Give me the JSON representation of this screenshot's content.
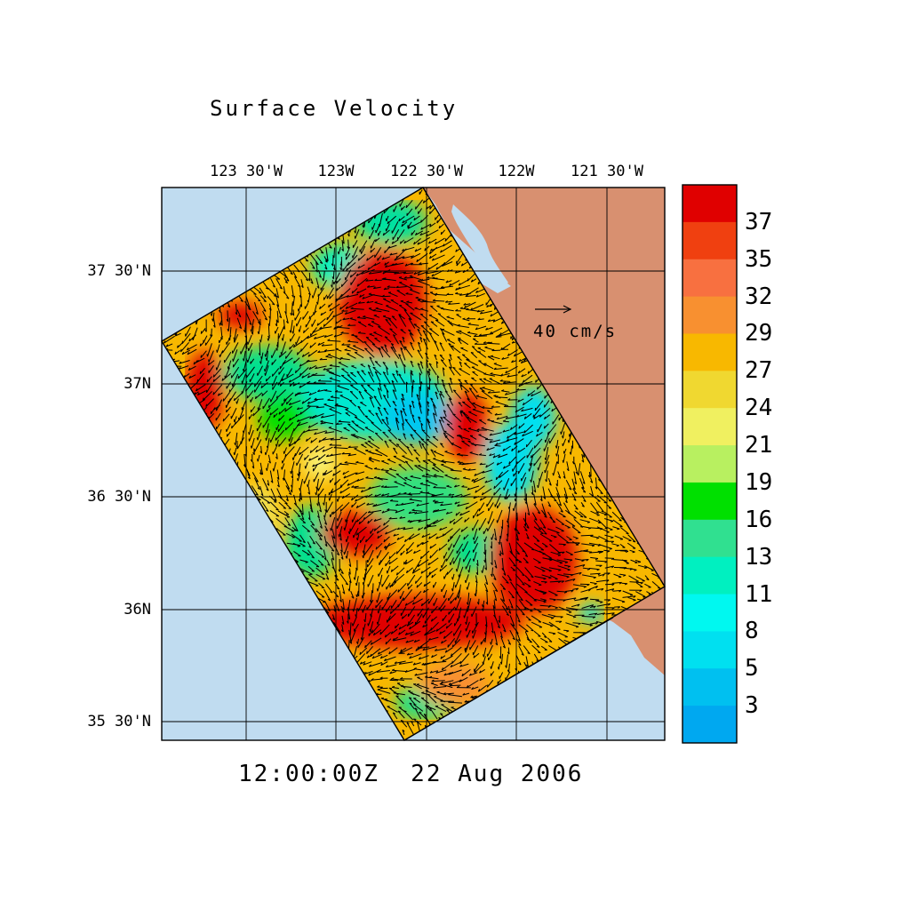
{
  "title": "Surface Velocity",
  "timestamp": "12:00:00Z  22 Aug 2006",
  "map": {
    "lon_ticks": [
      "123 30'W",
      "123W",
      "122 30'W",
      "122W",
      "121 30'W"
    ],
    "lat_ticks": [
      "37 30'N",
      "37N",
      "36 30'N",
      "36N",
      "35 30'N"
    ],
    "ocean_color": "#c0dcf0",
    "land_color": "#d89070",
    "vector_scale_label": "40 cm/s",
    "vector_scale_value": 40,
    "units": "cm/s"
  },
  "colorbar": {
    "labels": [
      "37",
      "35",
      "32",
      "29",
      "27",
      "24",
      "21",
      "19",
      "16",
      "13",
      "11",
      "8",
      "5",
      "3"
    ],
    "colors": [
      "#e00000",
      "#f04010",
      "#f87040",
      "#f89030",
      "#f8b800",
      "#f0d830",
      "#f0f060",
      "#b8f060",
      "#00e000",
      "#30e090",
      "#00f0c0",
      "#00f8f0",
      "#00e0f0",
      "#00c0f0",
      "#00a8f0"
    ]
  }
}
